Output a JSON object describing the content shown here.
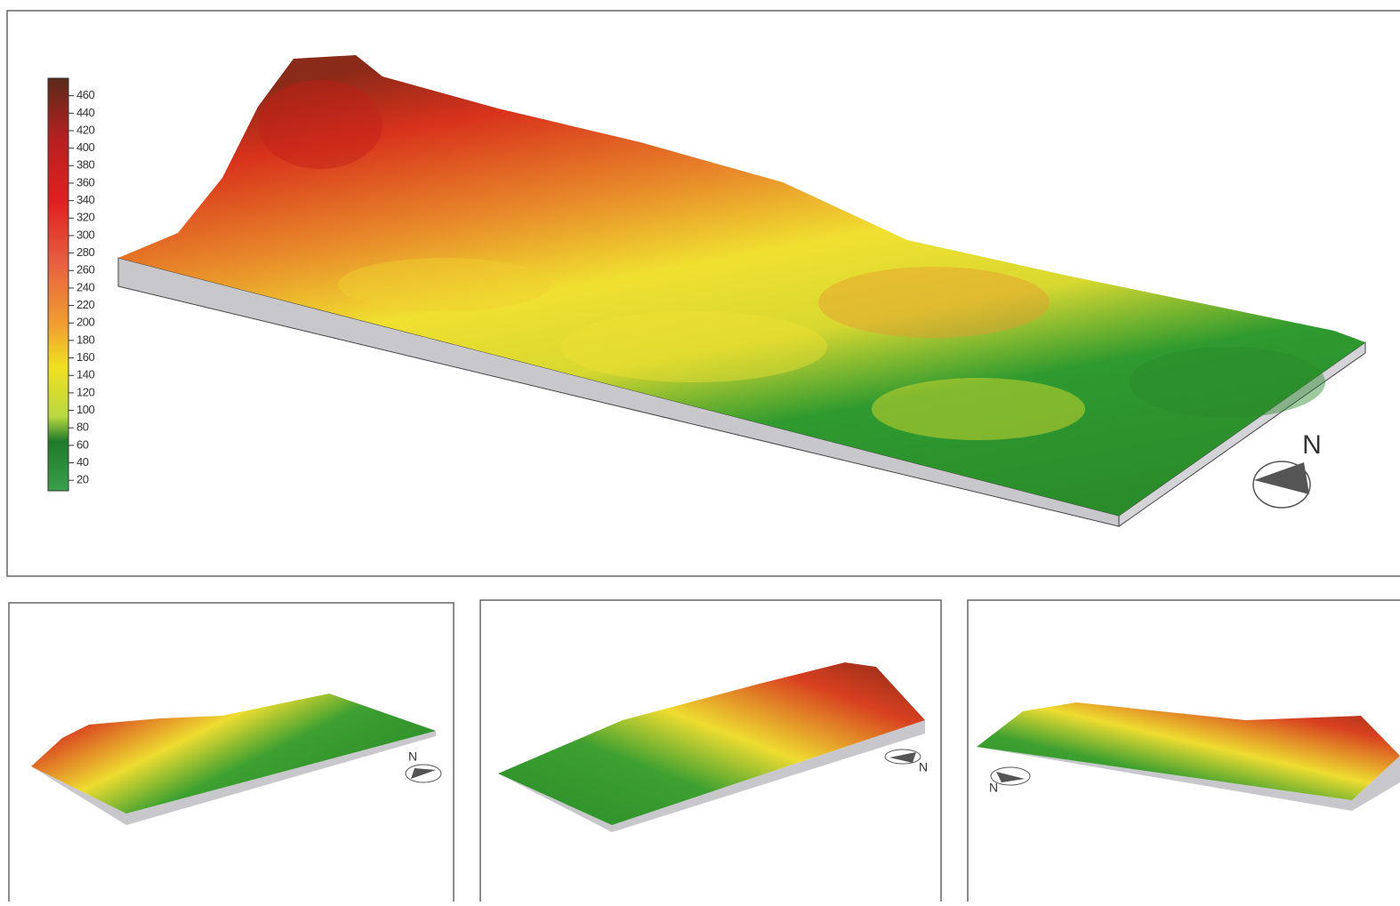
{
  "main": {
    "colorbar": {
      "lim": [
        8,
        480
      ],
      "ticks": [
        20,
        40,
        60,
        80,
        100,
        120,
        140,
        160,
        180,
        200,
        220,
        240,
        260,
        280,
        300,
        320,
        340,
        360,
        380,
        400,
        420,
        440,
        460
      ]
    },
    "compass_label": "N"
  },
  "views": [
    {
      "compass_label": "N"
    },
    {
      "compass_label": "N"
    },
    {
      "compass_label": "N"
    }
  ]
}
